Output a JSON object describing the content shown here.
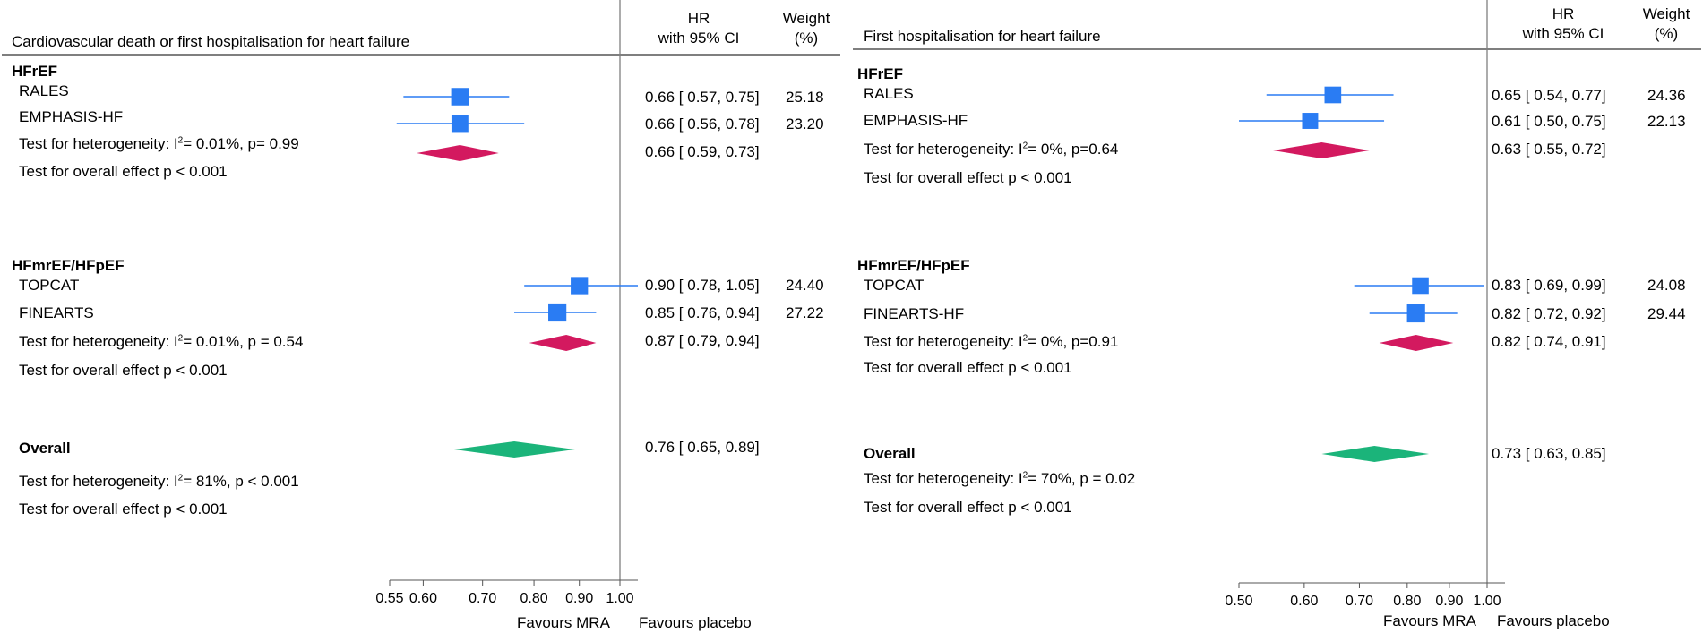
{
  "column_headers": {
    "hr_line1": "HR",
    "hr_line2": "with 95% CI",
    "weight_line1": "Weight",
    "weight_line2": "(%)"
  },
  "axis_label_left": "Favours MRA",
  "axis_label_right": "Favours placebo",
  "panels": [
    {
      "title": "Cardiovascular death or first hospitalisation for heart failure",
      "groups": [
        {
          "name": "HFrEF",
          "studies": [
            {
              "name": "RALES",
              "ci_text": "0.66 [ 0.57,  0.75]",
              "weight": "25.18"
            },
            {
              "name": "EMPHASIS-HF",
              "ci_text": "0.66 [ 0.56,  0.78]",
              "weight": "23.20"
            }
          ],
          "het_pre": "Test for heterogeneity: I",
          "het_post": "= 0.01%, p= 0.99",
          "pooled_text": "0.66 [ 0.59,  0.73]",
          "overall_effect": "Test for  overall effect p < 0.001"
        },
        {
          "name": "HFmrEF/HFpEF",
          "studies": [
            {
              "name": "TOPCAT",
              "ci_text": "0.90 [ 0.78,  1.05]",
              "weight": "24.40"
            },
            {
              "name": "FINEARTS",
              "ci_text": "0.85 [ 0.76,  0.94]",
              "weight": "27.22"
            }
          ],
          "het_pre": "Test for heterogeneity:  I",
          "het_post": "= 0.01%,  p = 0.54",
          "pooled_text": "0.87 [ 0.79,  0.94]",
          "overall_effect": "Test for overall effect p < 0.001"
        }
      ],
      "overall": {
        "label": "Overall",
        "ci_text": "0.76 [ 0.65,  0.89]",
        "het_pre": "Test for heterogeneity:  I",
        "het_post": "= 81%,  p < 0.001",
        "overall_effect": "Test for overall effect p < 0.001"
      }
    },
    {
      "title": "First hospitalisation for heart failure",
      "groups": [
        {
          "name": "HFrEF",
          "studies": [
            {
              "name": "RALES",
              "ci_text": "0.65 [ 0.54,  0.77]",
              "weight": "24.36"
            },
            {
              "name": "EMPHASIS-HF",
              "ci_text": "0.61 [ 0.50,  0.75]",
              "weight": "22.13"
            }
          ],
          "het_pre": "Test for heterogeneity:  I",
          "het_post": "= 0%,  p=0.64",
          "pooled_text": "0.63 [ 0.55,  0.72]",
          "overall_effect": "Test for overall effect p < 0.001"
        },
        {
          "name": "HFmrEF/HFpEF",
          "studies": [
            {
              "name": "TOPCAT",
              "ci_text": "0.83 [ 0.69,  0.99]",
              "weight": "24.08"
            },
            {
              "name": "FINEARTS-HF",
              "ci_text": "0.82 [ 0.72,  0.92]",
              "weight": "29.44"
            }
          ],
          "het_pre": "Test for heterogeneity:  I",
          "het_post": "= 0%,  p=0.91",
          "pooled_text": "0.82 [ 0.74,  0.91]",
          "overall_effect": "Test for overall effect p < 0.001"
        }
      ],
      "overall": {
        "label": "Overall",
        "ci_text": "0.73 [ 0.63,  0.85]",
        "het_pre": "Test for heterogeneity:  I",
        "het_post": "= 70%,  p = 0.02",
        "overall_effect": "Test for overall effect p < 0.001"
      }
    }
  ],
  "colors": {
    "study_marker": "#2a7cf3",
    "subgroup_diamond": "#d3195f",
    "overall_diamond": "#1bb47a",
    "axis": "#7a7a7a"
  },
  "chart_data": [
    {
      "type": "forest",
      "title": "Cardiovascular death or first hospitalisation for heart failure",
      "x_scale": "log",
      "xlim": [
        0.55,
        1.0
      ],
      "x_ticks": [
        "0.55",
        "0.60",
        "0.70",
        "0.80",
        "0.90",
        "1.00"
      ],
      "reference_line": 1.0,
      "studies": [
        {
          "group": "HFrEF",
          "name": "RALES",
          "hr": 0.66,
          "lo": 0.57,
          "hi": 0.75,
          "weight": 25.18
        },
        {
          "group": "HFrEF",
          "name": "EMPHASIS-HF",
          "hr": 0.66,
          "lo": 0.56,
          "hi": 0.78,
          "weight": 23.2
        },
        {
          "group": "HFmrEF/HFpEF",
          "name": "TOPCAT",
          "hr": 0.9,
          "lo": 0.78,
          "hi": 1.05,
          "weight": 24.4
        },
        {
          "group": "HFmrEF/HFpEF",
          "name": "FINEARTS",
          "hr": 0.85,
          "lo": 0.76,
          "hi": 0.94,
          "weight": 27.22
        }
      ],
      "subgroup_pooled": [
        {
          "group": "HFrEF",
          "hr": 0.66,
          "lo": 0.59,
          "hi": 0.73
        },
        {
          "group": "HFmrEF/HFpEF",
          "hr": 0.87,
          "lo": 0.79,
          "hi": 0.94
        }
      ],
      "overall": {
        "hr": 0.76,
        "lo": 0.65,
        "hi": 0.89
      }
    },
    {
      "type": "forest",
      "title": "First hospitalisation for heart failure",
      "x_scale": "log",
      "xlim": [
        0.5,
        1.0
      ],
      "x_ticks": [
        "0.50",
        "0.60",
        "0.70",
        "0.80",
        "0.90",
        "1.00"
      ],
      "reference_line": 1.0,
      "studies": [
        {
          "group": "HFrEF",
          "name": "RALES",
          "hr": 0.65,
          "lo": 0.54,
          "hi": 0.77,
          "weight": 24.36
        },
        {
          "group": "HFrEF",
          "name": "EMPHASIS-HF",
          "hr": 0.61,
          "lo": 0.5,
          "hi": 0.75,
          "weight": 22.13
        },
        {
          "group": "HFmrEF/HFpEF",
          "name": "TOPCAT",
          "hr": 0.83,
          "lo": 0.69,
          "hi": 0.99,
          "weight": 24.08
        },
        {
          "group": "HFmrEF/HFpEF",
          "name": "FINEARTS-HF",
          "hr": 0.82,
          "lo": 0.72,
          "hi": 0.92,
          "weight": 29.44
        }
      ],
      "subgroup_pooled": [
        {
          "group": "HFrEF",
          "hr": 0.63,
          "lo": 0.55,
          "hi": 0.72
        },
        {
          "group": "HFmrEF/HFpEF",
          "hr": 0.82,
          "lo": 0.74,
          "hi": 0.91
        }
      ],
      "overall": {
        "hr": 0.73,
        "lo": 0.63,
        "hi": 0.85
      }
    }
  ]
}
